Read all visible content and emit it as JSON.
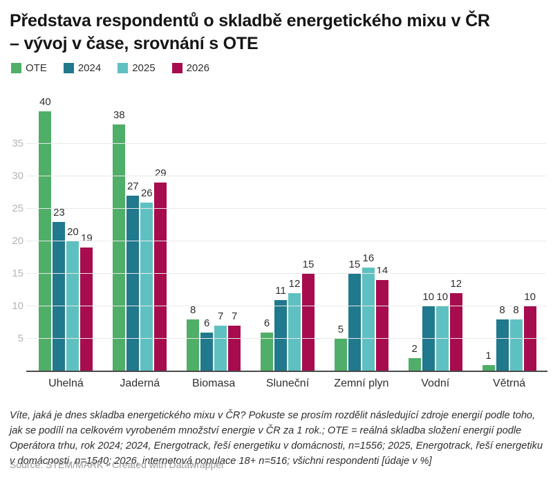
{
  "header": {
    "title": "Představa respondentů o skladbě energetického mixu v ČR\n– vývoj v čase, srovnání s OTE"
  },
  "chart_data": {
    "type": "bar",
    "title": "Představa respondentů o skladbě energetického mixu v ČR – vývoj v čase, srovnání s OTE",
    "categories": [
      "Uhelná",
      "Jaderná",
      "Biomasa",
      "Sluneční",
      "Zemní plyn",
      "Vodní",
      "Větrná"
    ],
    "series": [
      {
        "name": "OTE",
        "color": "#4fae67",
        "values": [
          40,
          38,
          8,
          6,
          5,
          2,
          1
        ]
      },
      {
        "name": "2024",
        "color": "#20798c",
        "values": [
          23,
          27,
          6,
          11,
          15,
          10,
          8
        ]
      },
      {
        "name": "2025",
        "color": "#5fc0c1",
        "values": [
          20,
          26,
          7,
          12,
          16,
          10,
          8
        ]
      },
      {
        "name": "2026",
        "color": "#a60c4e",
        "values": [
          19,
          29,
          7,
          15,
          14,
          12,
          10
        ]
      }
    ],
    "ylim": [
      0,
      40
    ],
    "yticks": [
      5,
      10,
      15,
      20,
      25,
      30,
      35
    ],
    "grid": true,
    "legend_position": "top",
    "value_labels": true,
    "units": "%"
  },
  "footer": {
    "notes": "Víte, jaká je dnes skladba energetického mixu v ČR? Pokuste se prosím rozdělit následující zdroje energií podle toho, jak se podílí na celkovém vyrobeném množství energie v ČR za 1 rok.; OTE = reálná skladba složení energií podle Operátora trhu, rok 2024; 2024, Energotrack, řeší energetiku v domácnosti, n=1556; 2025, Energotrack, řeší energetiku v domácnosti, n=1540; 2026, internetová populace 18+ n=516; všichni respondenti [údaje v %]",
    "source": "Source: STEM/MARK • Created with Datawrapper"
  },
  "colors": {
    "title": "#151515",
    "text": "#2f2f2f",
    "tick_label": "#b5b5b5",
    "grid": "#e9e9e9",
    "axis": "#4a4a4a",
    "source": "#9b9b9b"
  }
}
